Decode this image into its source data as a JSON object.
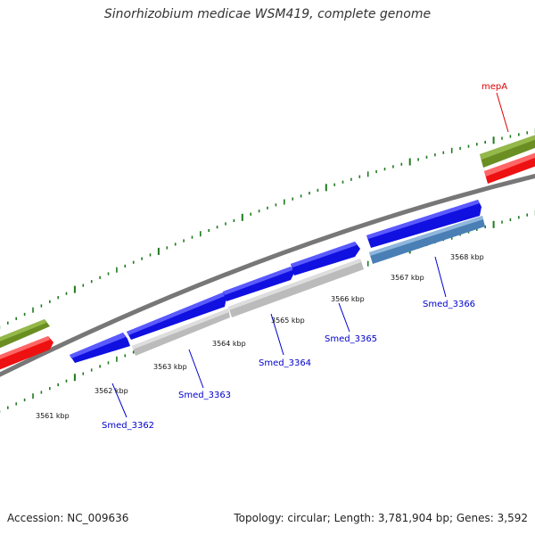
{
  "title": "Sinorhizobium medicae WSM419, complete genome",
  "footer": {
    "accession": "Accession: NC_009636",
    "summary": "Topology: circular; Length: 3,781,904 bp; Genes: 3,592"
  },
  "colors": {
    "tick": "#1f7a1f",
    "backbone": "#777777",
    "cds_forward": "#1010e0",
    "cds_reverse": "#bbbbbb",
    "cds_reverse_highlight": "#4a7fb5",
    "green_feature": "#6b8e23",
    "red_feature": "#ee1111",
    "blue_label": "#0000cc",
    "red_label": "#dd0000"
  },
  "scale_labels": [
    "3561 kbp",
    "3562 kbp",
    "3563 kbp",
    "3564 kbp",
    "3565 kbp",
    "3566 kbp",
    "3567 kbp",
    "3568 kbp"
  ],
  "gene_labels": [
    {
      "text": "Smed_3362",
      "color": "#0000cc"
    },
    {
      "text": "Smed_3363",
      "color": "#0000cc"
    },
    {
      "text": "Smed_3364",
      "color": "#0000cc"
    },
    {
      "text": "Smed_3365",
      "color": "#0000cc"
    },
    {
      "text": "Smed_3366",
      "color": "#0000cc"
    },
    {
      "text": "mepA",
      "color": "#dd0000"
    }
  ]
}
